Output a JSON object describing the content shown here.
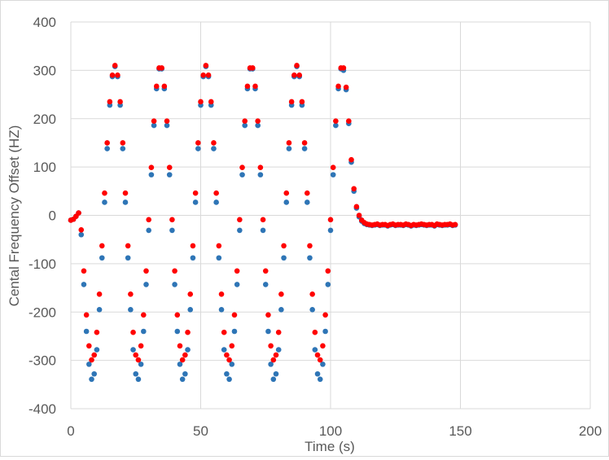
{
  "chart_data": {
    "type": "scatter",
    "title": "",
    "xlabel": "Time (s)",
    "ylabel": "Cental Frequency Offset (HZ)",
    "xlim": [
      0,
      200
    ],
    "ylim": [
      -400,
      400
    ],
    "xticks": [
      "0",
      "50",
      "100",
      "150",
      "200"
    ],
    "yticks": [
      "400",
      "300",
      "200",
      "100",
      "0",
      "-100",
      "-200",
      "-300",
      "-400"
    ],
    "grid": true,
    "legend": "none",
    "x": [
      0,
      1,
      2,
      3,
      4,
      5,
      6,
      7,
      8,
      9,
      10,
      11,
      12,
      13,
      14,
      15,
      16,
      17,
      18,
      19,
      20,
      21,
      22,
      23,
      24,
      25,
      26,
      27,
      28,
      29,
      30,
      31,
      32,
      33,
      34,
      35,
      36,
      37,
      38,
      39,
      40,
      41,
      42,
      43,
      44,
      45,
      46,
      47,
      48,
      49,
      50,
      51,
      52,
      53,
      54,
      55,
      56,
      57,
      58,
      59,
      60,
      61,
      62,
      63,
      64,
      65,
      66,
      67,
      68,
      69,
      70,
      71,
      72,
      73,
      74,
      75,
      76,
      77,
      78,
      79,
      80,
      81,
      82,
      83,
      84,
      85,
      86,
      87,
      88,
      89,
      90,
      91,
      92,
      93,
      94,
      95,
      96,
      97,
      98,
      99,
      100,
      101,
      102,
      103,
      104,
      105,
      106,
      107,
      108,
      109,
      110,
      111,
      112,
      113,
      114,
      115,
      116,
      117,
      118,
      119,
      120,
      121,
      122,
      123,
      124,
      125,
      126,
      127,
      128,
      129,
      130,
      131,
      132,
      133,
      134,
      135,
      136,
      137,
      138,
      139,
      140,
      141,
      142,
      143,
      144,
      145,
      146,
      147,
      148
    ],
    "series": [
      {
        "color": "#2E75B6",
        "values": [
          -10,
          -8,
          -2,
          5,
          -40,
          -143,
          -240,
          -308,
          -339,
          -328,
          -278,
          -195,
          -88,
          27,
          138,
          228,
          287,
          308,
          287,
          228,
          138,
          27,
          -88,
          -195,
          -278,
          -328,
          -339,
          -308,
          -240,
          -143,
          -31,
          84,
          186,
          262,
          303,
          303,
          262,
          186,
          84,
          -31,
          -143,
          -240,
          -308,
          -339,
          -328,
          -278,
          -195,
          -88,
          27,
          138,
          228,
          287,
          308,
          287,
          228,
          138,
          27,
          -88,
          -195,
          -278,
          -328,
          -339,
          -308,
          -240,
          -143,
          -31,
          84,
          186,
          262,
          303,
          303,
          262,
          186,
          84,
          -31,
          -143,
          -240,
          -308,
          -339,
          -328,
          -278,
          -195,
          -88,
          27,
          138,
          228,
          287,
          308,
          287,
          228,
          138,
          27,
          -88,
          -195,
          -278,
          -328,
          -339,
          -308,
          -240,
          -143,
          -31,
          84,
          186,
          262,
          303,
          300,
          260,
          190,
          110,
          50,
          15,
          -3,
          -12,
          -17,
          -19,
          -20,
          -21,
          -20,
          -19,
          -21,
          -20,
          -20,
          -22,
          -20,
          -19,
          -21,
          -20,
          -20,
          -21,
          -19,
          -20,
          -22,
          -20,
          -21,
          -20,
          -19,
          -20,
          -21,
          -20,
          -20,
          -22,
          -19,
          -20,
          -21,
          -20,
          -20,
          -19,
          -21,
          -20
        ]
      },
      {
        "color": "#FF0000",
        "values": [
          -10,
          -8,
          -2,
          5,
          -30,
          -115,
          -206,
          -270,
          -299,
          -289,
          -242,
          -163,
          -63,
          46,
          150,
          235,
          290,
          310,
          290,
          235,
          150,
          46,
          -63,
          -163,
          -242,
          -289,
          -299,
          -270,
          -206,
          -115,
          -9,
          99,
          195,
          267,
          305,
          305,
          267,
          195,
          99,
          -9,
          -115,
          -206,
          -270,
          -299,
          -289,
          -242,
          -163,
          -63,
          46,
          150,
          235,
          290,
          310,
          290,
          235,
          150,
          46,
          -63,
          -163,
          -242,
          -289,
          -299,
          -270,
          -206,
          -115,
          -9,
          99,
          195,
          267,
          305,
          305,
          267,
          195,
          99,
          -9,
          -115,
          -206,
          -270,
          -299,
          -289,
          -242,
          -163,
          -63,
          46,
          150,
          235,
          290,
          310,
          290,
          235,
          150,
          46,
          -63,
          -163,
          -242,
          -289,
          -299,
          -270,
          -206,
          -115,
          -9,
          99,
          195,
          267,
          305,
          305,
          265,
          195,
          115,
          55,
          18,
          0,
          -10,
          -15,
          -18,
          -19,
          -20,
          -19,
          -18,
          -20,
          -19,
          -19,
          -21,
          -19,
          -18,
          -20,
          -19,
          -19,
          -20,
          -18,
          -19,
          -21,
          -19,
          -20,
          -19,
          -18,
          -19,
          -20,
          -19,
          -19,
          -21,
          -18,
          -19,
          -20,
          -19,
          -19,
          -18,
          -20,
          -19
        ]
      }
    ]
  }
}
